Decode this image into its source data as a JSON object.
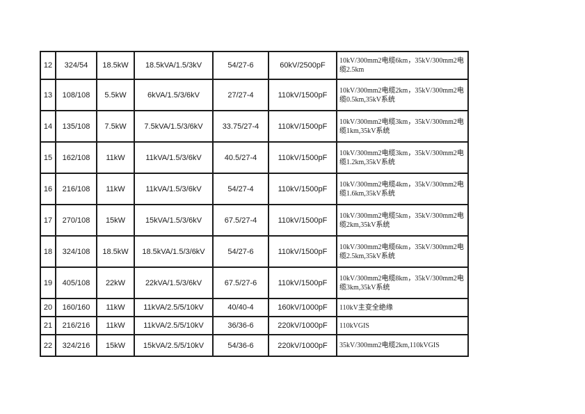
{
  "page": {
    "background_color": "#ffffff",
    "border_color": "#1b1b1b",
    "text_color": "#1a1a1a"
  },
  "table": {
    "rows": [
      {
        "cells": [
          "12",
          "324/54",
          "18.5kW",
          "18.5kVA/1.5/3kV",
          "54/27-6",
          "60kV/2500pF",
          "10kV/300mm2电缆6km，35kV/300mm2电缆2.5km"
        ]
      },
      {
        "cells": [
          "13",
          "108/108",
          "5.5kW",
          "6kVA/1.5/3/6kV",
          "27/27-4",
          "110kV/1500pF",
          "10kV/300mm2电缆2km，35kV/300mm2电缆0.5km,35kV系统"
        ]
      },
      {
        "cells": [
          "14",
          "135/108",
          "7.5kW",
          "7.5kVA/1.5/3/6kV",
          "33.75/27-4",
          "110kV/1500pF",
          "10kV/300mm2电缆3km，35kV/300mm2电缆1km,35kV系统"
        ]
      },
      {
        "cells": [
          "15",
          "162/108",
          "11kW",
          "11kVA/1.5/3/6kV",
          "40.5/27-4",
          "110kV/1500pF",
          "10kV/300mm2电缆3km，35kV/300mm2电缆1.2km,35kV系统"
        ]
      },
      {
        "cells": [
          "16",
          "216/108",
          "11kW",
          "11kVA/1.5/3/6kV",
          "54/27-4",
          "110kV/1500pF",
          "10kV/300mm2电缆4km，35kV/300mm2电缆1.6km,35kV系统"
        ]
      },
      {
        "cells": [
          "17",
          "270/108",
          "15kW",
          "15kVA/1.5/3/6kV",
          "67.5/27-4",
          "110kV/1500pF",
          "10kV/300mm2电缆5km，35kV/300mm2电缆2km,35kV系统"
        ]
      },
      {
        "cells": [
          "18",
          "324/108",
          "18.5kW",
          "18.5kVA/1.5/3/6kV",
          "54/27-6",
          "110kV/1500pF",
          "10kV/300mm2电缆6km，35kV/300mm2电缆2.5km,35kV系统"
        ]
      },
      {
        "cells": [
          "19",
          "405/108",
          "22kW",
          "22kVA/1.5/3/6kV",
          "67.5/27-6",
          "110kV/1500pF",
          "10kV/300mm2电缆8km，35kV/300mm2电缆3km,35kV系统"
        ]
      },
      {
        "cells": [
          "20",
          "160/160",
          "11kW",
          "11kVA/2.5/5/10kV",
          "40/40-4",
          "160kV/1000pF",
          "110kV主变全绝缘"
        ]
      },
      {
        "cells": [
          "21",
          "216/216",
          "11kW",
          "11kVA/2.5/5/10kV",
          "36/36-6",
          "220kV/1000pF",
          "110kVGIS"
        ]
      },
      {
        "cells": [
          "22",
          "324/216",
          "15kW",
          "15kVA/2.5/5/10kV",
          "54/36-6",
          "220kV/1000pF",
          "35kV/300mm2电缆2km,110kVGIS"
        ]
      }
    ]
  }
}
